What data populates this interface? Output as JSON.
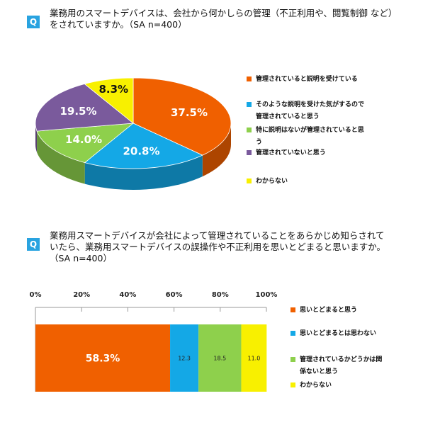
{
  "q1": {
    "badge": "Q",
    "line1": "業務用のスマートデバイスは、会社から何かしらの管理（不正利用や、閲覧制御 など）",
    "line2": "をされていますか。（SA n=400）"
  },
  "q2": {
    "badge": "Q",
    "line1": "業務用スマートデバイスが会社によって管理されていることをあらかじめ知らされて",
    "line2": "いたら、業務用スマートデバイスの誤操作や不正利用を思いとどまると思いますか。",
    "line3": "（SA n=400）"
  },
  "chart_data": [
    {
      "type": "pie",
      "style": "3d",
      "categories": [
        "管理されていると説明を受けている",
        "そのような説明を受けた気がするので管理されていると思う",
        "特に説明はないが管理されていると思う",
        "管理されていないと思う",
        "わからない"
      ],
      "values": [
        37.5,
        20.8,
        14.0,
        19.5,
        8.3
      ],
      "labels": [
        "37.5%",
        "20.8%",
        "14.0%",
        "19.5%",
        "8.3%"
      ],
      "colors": [
        "#f06000",
        "#14a8e6",
        "#8ed04c",
        "#7a5a9c",
        "#f8f000"
      ],
      "legend_position": "right",
      "legend": [
        {
          "line1": "管理されていると説明を受けている"
        },
        {
          "line1": "そのような説明を受けた気がするので",
          "line2": "管理されていると思う"
        },
        {
          "line1": "特に説明はないが管理されていると思",
          "line2": "う"
        },
        {
          "line1": "管理されていないと思う"
        },
        {
          "line1": "わからない"
        }
      ]
    },
    {
      "type": "bar",
      "orientation": "horizontal",
      "stacked": true,
      "xlim": [
        0,
        100
      ],
      "xticks": [
        "0%",
        "20%",
        "40%",
        "60%",
        "80%",
        "100%"
      ],
      "series": [
        {
          "name": "思いとどまると思う",
          "value": 58.3,
          "label": "58.3%",
          "color": "#f06000"
        },
        {
          "name": "思いとどまるとは思わない",
          "value": 12.3,
          "label": "12.3",
          "color": "#14a8e6"
        },
        {
          "name": "管理されているかどうかは関係ないと思う",
          "value": 18.5,
          "label": "18.5",
          "color": "#8ed04c"
        },
        {
          "name": "わからない",
          "value": 11.0,
          "label": "11.0",
          "color": "#f8f000"
        }
      ],
      "legend_position": "right",
      "legend": [
        {
          "line1": "思いとどまると思う"
        },
        {
          "line1": "思いとどまるとは思わない"
        },
        {
          "line1": "管理されているかどうかは関",
          "line2": "係ないと思う"
        },
        {
          "line1": "わからない"
        }
      ]
    }
  ]
}
